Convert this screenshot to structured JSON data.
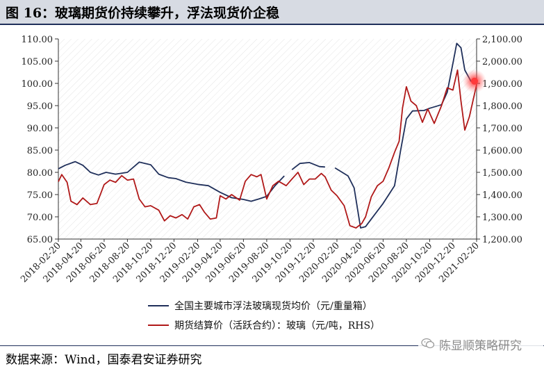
{
  "header": {
    "title": "图 16：玻璃期货价持续攀升，浮法现货价企稳"
  },
  "footer": {
    "source": "数据来源：Wind，国泰君安证券研究"
  },
  "watermark": {
    "text": "陈显顺策略研究",
    "icon": "wechat-icon"
  },
  "colors": {
    "spot": "#1f2f5a",
    "futures": "#b01818",
    "highlight": "#ff3a3a"
  },
  "chart_data": {
    "type": "line",
    "x": [
      "2018-02-20",
      "2018-04-20",
      "2018-06-20",
      "2018-08-20",
      "2018-10-20",
      "2018-12-20",
      "2019-02-20",
      "2019-04-20",
      "2019-06-20",
      "2019-08-20",
      "2019-10-20",
      "2019-12-20",
      "2020-02-20",
      "2020-04-20",
      "2020-06-20",
      "2020-08-20",
      "2020-10-20",
      "2020-12-20",
      "2021-02-20"
    ],
    "y_left": {
      "ticks": [
        "65.00",
        "70.00",
        "75.00",
        "80.00",
        "85.00",
        "90.00",
        "95.00",
        "100.00",
        "105.00",
        "110.00"
      ],
      "lim": [
        65,
        110
      ]
    },
    "y_right": {
      "ticks": [
        "1,200.00",
        "1,300.00",
        "1,400.00",
        "1,500.00",
        "1,600.00",
        "1,700.00",
        "1,800.00",
        "1,900.00",
        "2,000.00",
        "2,100.00"
      ],
      "lim": [
        1200,
        2100
      ]
    },
    "grid": "diagonal-hatch",
    "legend_position": "bottom",
    "series": [
      {
        "name": "全国主要城市浮法玻璃现货均价（元/重量箱）",
        "axis": "left",
        "points": [
          [
            "2018-02-20",
            80.8
          ],
          [
            "2018-03-10",
            81.6
          ],
          [
            "2018-04-05",
            82.4
          ],
          [
            "2018-04-25",
            81.6
          ],
          [
            "2018-05-15",
            80.0
          ],
          [
            "2018-06-05",
            79.4
          ],
          [
            "2018-06-25",
            80.0
          ],
          [
            "2018-07-20",
            79.6
          ],
          [
            "2018-08-20",
            80.0
          ],
          [
            "2018-09-20",
            82.3
          ],
          [
            "2018-10-20",
            81.7
          ],
          [
            "2018-11-10",
            79.6
          ],
          [
            "2018-12-05",
            78.8
          ],
          [
            "2018-12-25",
            78.6
          ],
          [
            "2019-01-20",
            77.8
          ],
          [
            "2019-02-20",
            77.3
          ],
          [
            "2019-03-20",
            77.0
          ],
          [
            "2019-04-20",
            75.5
          ],
          [
            "2019-05-20",
            74.3
          ],
          [
            "2019-06-20",
            73.9
          ],
          [
            "2019-07-10",
            73.5
          ],
          [
            "2019-07-30",
            74.0
          ],
          [
            "2019-08-20",
            74.6
          ],
          [
            "2019-09-10",
            76.9
          ],
          [
            "2019-10-05",
            79.2
          ],
          [
            "2019-10-20",
            null
          ],
          [
            "2019-10-25",
            80.6
          ],
          [
            "2019-11-15",
            82.0
          ],
          [
            "2019-12-10",
            82.2
          ],
          [
            "2020-01-05",
            81.3
          ],
          [
            "2020-01-20",
            81.2
          ],
          [
            "2020-02-01",
            null
          ],
          [
            "2020-02-15",
            81.0
          ],
          [
            "2020-03-20",
            79.2
          ],
          [
            "2020-04-05",
            76.5
          ],
          [
            "2020-04-22",
            67.5
          ],
          [
            "2020-05-05",
            67.8
          ],
          [
            "2020-05-20",
            69.5
          ],
          [
            "2020-06-20",
            73.0
          ],
          [
            "2020-07-20",
            77.0
          ],
          [
            "2020-08-05",
            85.0
          ],
          [
            "2020-08-20",
            92.0
          ],
          [
            "2020-09-05",
            93.8
          ],
          [
            "2020-10-05",
            93.9
          ],
          [
            "2020-10-20",
            94.4
          ],
          [
            "2020-11-20",
            95.2
          ],
          [
            "2020-12-05",
            98.0
          ],
          [
            "2020-12-20",
            104.5
          ],
          [
            "2020-12-30",
            109.0
          ],
          [
            "2021-01-10",
            108.0
          ],
          [
            "2021-01-20",
            103.0
          ],
          [
            "2021-02-05",
            100.5
          ],
          [
            "2021-02-20",
            100.5
          ]
        ]
      },
      {
        "name": "期货结算价（活跃合约）：玻璃（元/吨，RHS）",
        "axis": "right",
        "points": [
          [
            "2018-02-20",
            1458
          ],
          [
            "2018-03-01",
            1490
          ],
          [
            "2018-03-15",
            1455
          ],
          [
            "2018-03-25",
            1370
          ],
          [
            "2018-04-10",
            1355
          ],
          [
            "2018-04-25",
            1385
          ],
          [
            "2018-05-15",
            1355
          ],
          [
            "2018-06-01",
            1360
          ],
          [
            "2018-06-20",
            1445
          ],
          [
            "2018-07-05",
            1465
          ],
          [
            "2018-07-20",
            1455
          ],
          [
            "2018-08-05",
            1485
          ],
          [
            "2018-08-20",
            1465
          ],
          [
            "2018-09-05",
            1470
          ],
          [
            "2018-09-20",
            1380
          ],
          [
            "2018-10-05",
            1345
          ],
          [
            "2018-10-20",
            1350
          ],
          [
            "2018-11-10",
            1330
          ],
          [
            "2018-11-25",
            1282
          ],
          [
            "2018-12-10",
            1305
          ],
          [
            "2018-12-25",
            1295
          ],
          [
            "2019-01-10",
            1310
          ],
          [
            "2019-01-25",
            1290
          ],
          [
            "2019-02-10",
            1345
          ],
          [
            "2019-02-25",
            1355
          ],
          [
            "2019-03-10",
            1320
          ],
          [
            "2019-03-25",
            1290
          ],
          [
            "2019-04-10",
            1295
          ],
          [
            "2019-04-20",
            1395
          ],
          [
            "2019-05-05",
            1380
          ],
          [
            "2019-05-20",
            1400
          ],
          [
            "2019-06-10",
            1375
          ],
          [
            "2019-06-25",
            1460
          ],
          [
            "2019-07-10",
            1490
          ],
          [
            "2019-07-25",
            1480
          ],
          [
            "2019-08-05",
            1490
          ],
          [
            "2019-08-20",
            1380
          ],
          [
            "2019-09-05",
            1440
          ],
          [
            "2019-09-20",
            1460
          ],
          [
            "2019-10-10",
            1440
          ],
          [
            "2019-10-25",
            1470
          ],
          [
            "2019-11-10",
            1500
          ],
          [
            "2019-11-25",
            1445
          ],
          [
            "2019-12-10",
            1470
          ],
          [
            "2019-12-25",
            1470
          ],
          [
            "2020-01-10",
            1495
          ],
          [
            "2020-01-20",
            1480
          ],
          [
            "2020-02-05",
            1420
          ],
          [
            "2020-02-20",
            1395
          ],
          [
            "2020-03-10",
            1350
          ],
          [
            "2020-03-25",
            1260
          ],
          [
            "2020-04-10",
            1250
          ],
          [
            "2020-04-25",
            1270
          ],
          [
            "2020-05-05",
            1300
          ],
          [
            "2020-05-20",
            1390
          ],
          [
            "2020-06-05",
            1440
          ],
          [
            "2020-06-20",
            1460
          ],
          [
            "2020-07-05",
            1520
          ],
          [
            "2020-07-20",
            1590
          ],
          [
            "2020-08-01",
            1640
          ],
          [
            "2020-08-10",
            1790
          ],
          [
            "2020-08-20",
            1885
          ],
          [
            "2020-09-01",
            1820
          ],
          [
            "2020-09-15",
            1800
          ],
          [
            "2020-10-01",
            1725
          ],
          [
            "2020-10-15",
            1785
          ],
          [
            "2020-11-01",
            1720
          ],
          [
            "2020-11-20",
            1800
          ],
          [
            "2020-12-05",
            1880
          ],
          [
            "2020-12-20",
            1870
          ],
          [
            "2021-01-01",
            1960
          ],
          [
            "2021-01-10",
            1820
          ],
          [
            "2021-01-20",
            1690
          ],
          [
            "2021-02-01",
            1750
          ],
          [
            "2021-02-20",
            1895
          ]
        ]
      }
    ],
    "highlight_point": {
      "x": "2021-02-20",
      "y": 100.5
    }
  }
}
